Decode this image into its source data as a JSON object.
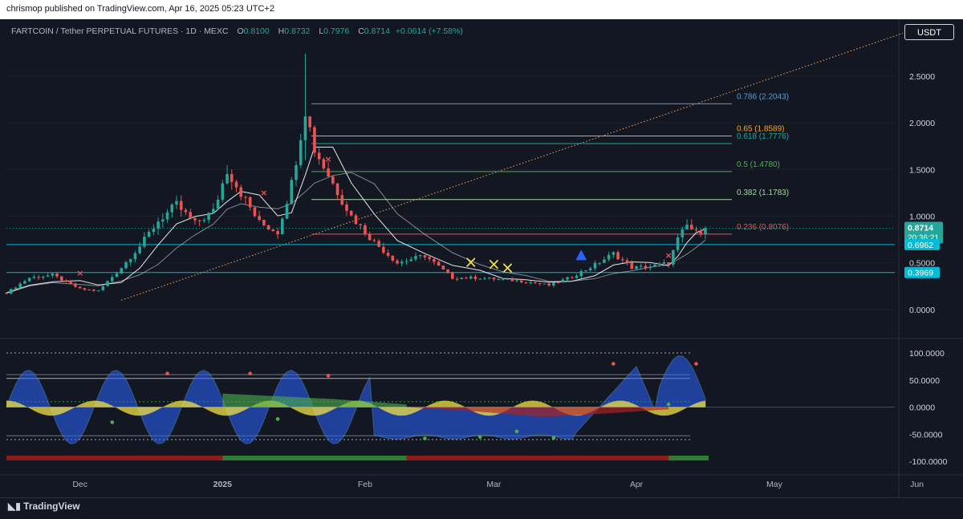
{
  "header": {
    "published_by": "chrismop published on TradingView.com, Apr 16, 2025 05:23 UTC+2"
  },
  "symbol_bar": {
    "title": "FARTCOIN / Tether PERPETUAL FUTURES · 1D · MEXC",
    "open_label": "O",
    "open": "0.8100",
    "high_label": "H",
    "high": "0.8732",
    "low_label": "L",
    "low": "0.7976",
    "close_label": "C",
    "close": "0.8714",
    "change": "+0.0614 (+7.58%)"
  },
  "currency_button": "USDT",
  "footer": {
    "brand": "TradingView"
  },
  "colors": {
    "background": "#131722",
    "up": "#26a69a",
    "down": "#ef5350",
    "trendline": "#f7a35c",
    "fib_0786": "#5b9bd5",
    "fib_065": "#f5a623",
    "fib_0618": "#26a69a",
    "fib_05": "#4caf50",
    "fib_0382": "#a5d6a7",
    "fib_0236": "#ef5350",
    "cyan_line": "#00bcd4",
    "blue_area": "#2962ff",
    "yellow_area": "#f3e24a"
  },
  "chart_data": [
    {
      "type": "candlestick",
      "title": "FARTCOIN / Tether PERPETUAL FUTURES · 1D · MEXC",
      "y_axis_ticks": [
        "2.5000",
        "2.0000",
        "1.5000",
        "1.0000",
        "0.5000",
        "0.0000"
      ],
      "ylim": [
        -0.25,
        2.8
      ],
      "x_axis_ticks": [
        "Dec",
        "2025",
        "Feb",
        "Mar",
        "Apr",
        "May",
        "Jun"
      ],
      "last_price": "0.8714",
      "countdown": "20:36:21",
      "horizontal_levels": [
        {
          "label": "0.6962",
          "value": 0.6962
        },
        {
          "label": "0.3969",
          "value": 0.3969
        }
      ],
      "fib_levels": [
        {
          "label": "0.786 (2.2043)",
          "value": 2.2043,
          "color": "#5b9bd5"
        },
        {
          "label": "0.65 (1.8589)",
          "value": 1.8589,
          "color": "#f5a623"
        },
        {
          "label": "0.618 (1.7776)",
          "value": 1.7776,
          "color": "#26a69a"
        },
        {
          "label": "0.5 (1.4780)",
          "value": 1.478,
          "color": "#4caf50"
        },
        {
          "label": "0.382 (1.1783)",
          "value": 1.1783,
          "color": "#a5d6a7"
        },
        {
          "label": "0.236 (0.8076)",
          "value": 0.8076,
          "color": "#ef5350"
        }
      ],
      "price_series": [
        {
          "date": "2024-11-15",
          "close": 0.18
        },
        {
          "date": "2024-11-20",
          "close": 0.34
        },
        {
          "date": "2024-11-25",
          "close": 0.37
        },
        {
          "date": "2024-12-01",
          "close": 0.22
        },
        {
          "date": "2024-12-05",
          "close": 0.2
        },
        {
          "date": "2024-12-10",
          "close": 0.45
        },
        {
          "date": "2024-12-14",
          "close": 0.68
        },
        {
          "date": "2024-12-18",
          "close": 0.95
        },
        {
          "date": "2024-12-22",
          "close": 1.12
        },
        {
          "date": "2024-12-26",
          "close": 0.92
        },
        {
          "date": "2024-12-30",
          "close": 1.05
        },
        {
          "date": "2025-01-02",
          "close": 1.5
        },
        {
          "date": "2025-01-05",
          "close": 1.25
        },
        {
          "date": "2025-01-09",
          "close": 0.93
        },
        {
          "date": "2025-01-13",
          "close": 0.83
        },
        {
          "date": "2025-01-16",
          "close": 1.35
        },
        {
          "date": "2025-01-19",
          "close": 2.15
        },
        {
          "date": "2025-01-21",
          "close": 1.72
        },
        {
          "date": "2025-01-25",
          "close": 1.35
        },
        {
          "date": "2025-01-29",
          "close": 1.0
        },
        {
          "date": "2025-02-03",
          "close": 0.72
        },
        {
          "date": "2025-02-08",
          "close": 0.5
        },
        {
          "date": "2025-02-14",
          "close": 0.58
        },
        {
          "date": "2025-02-20",
          "close": 0.34
        },
        {
          "date": "2025-02-26",
          "close": 0.34
        },
        {
          "date": "2025-03-03",
          "close": 0.32
        },
        {
          "date": "2025-03-08",
          "close": 0.3
        },
        {
          "date": "2025-03-13",
          "close": 0.26
        },
        {
          "date": "2025-03-18",
          "close": 0.35
        },
        {
          "date": "2025-03-23",
          "close": 0.48
        },
        {
          "date": "2025-03-27",
          "close": 0.6
        },
        {
          "date": "2025-03-31",
          "close": 0.45
        },
        {
          "date": "2025-04-04",
          "close": 0.46
        },
        {
          "date": "2025-04-08",
          "close": 0.5
        },
        {
          "date": "2025-04-10",
          "close": 0.75
        },
        {
          "date": "2025-04-12",
          "close": 0.9
        },
        {
          "date": "2025-04-14",
          "close": 0.82
        },
        {
          "date": "2025-04-16",
          "close": 0.8714
        }
      ]
    },
    {
      "type": "area",
      "title": "",
      "y_axis_ticks": [
        "100.0000",
        "50.0000",
        "0.0000",
        "-50.0000",
        "-100.0000"
      ],
      "ylim": [
        -100,
        100
      ],
      "reference_levels": [
        100,
        60,
        53,
        10,
        -53,
        -60
      ]
    }
  ]
}
